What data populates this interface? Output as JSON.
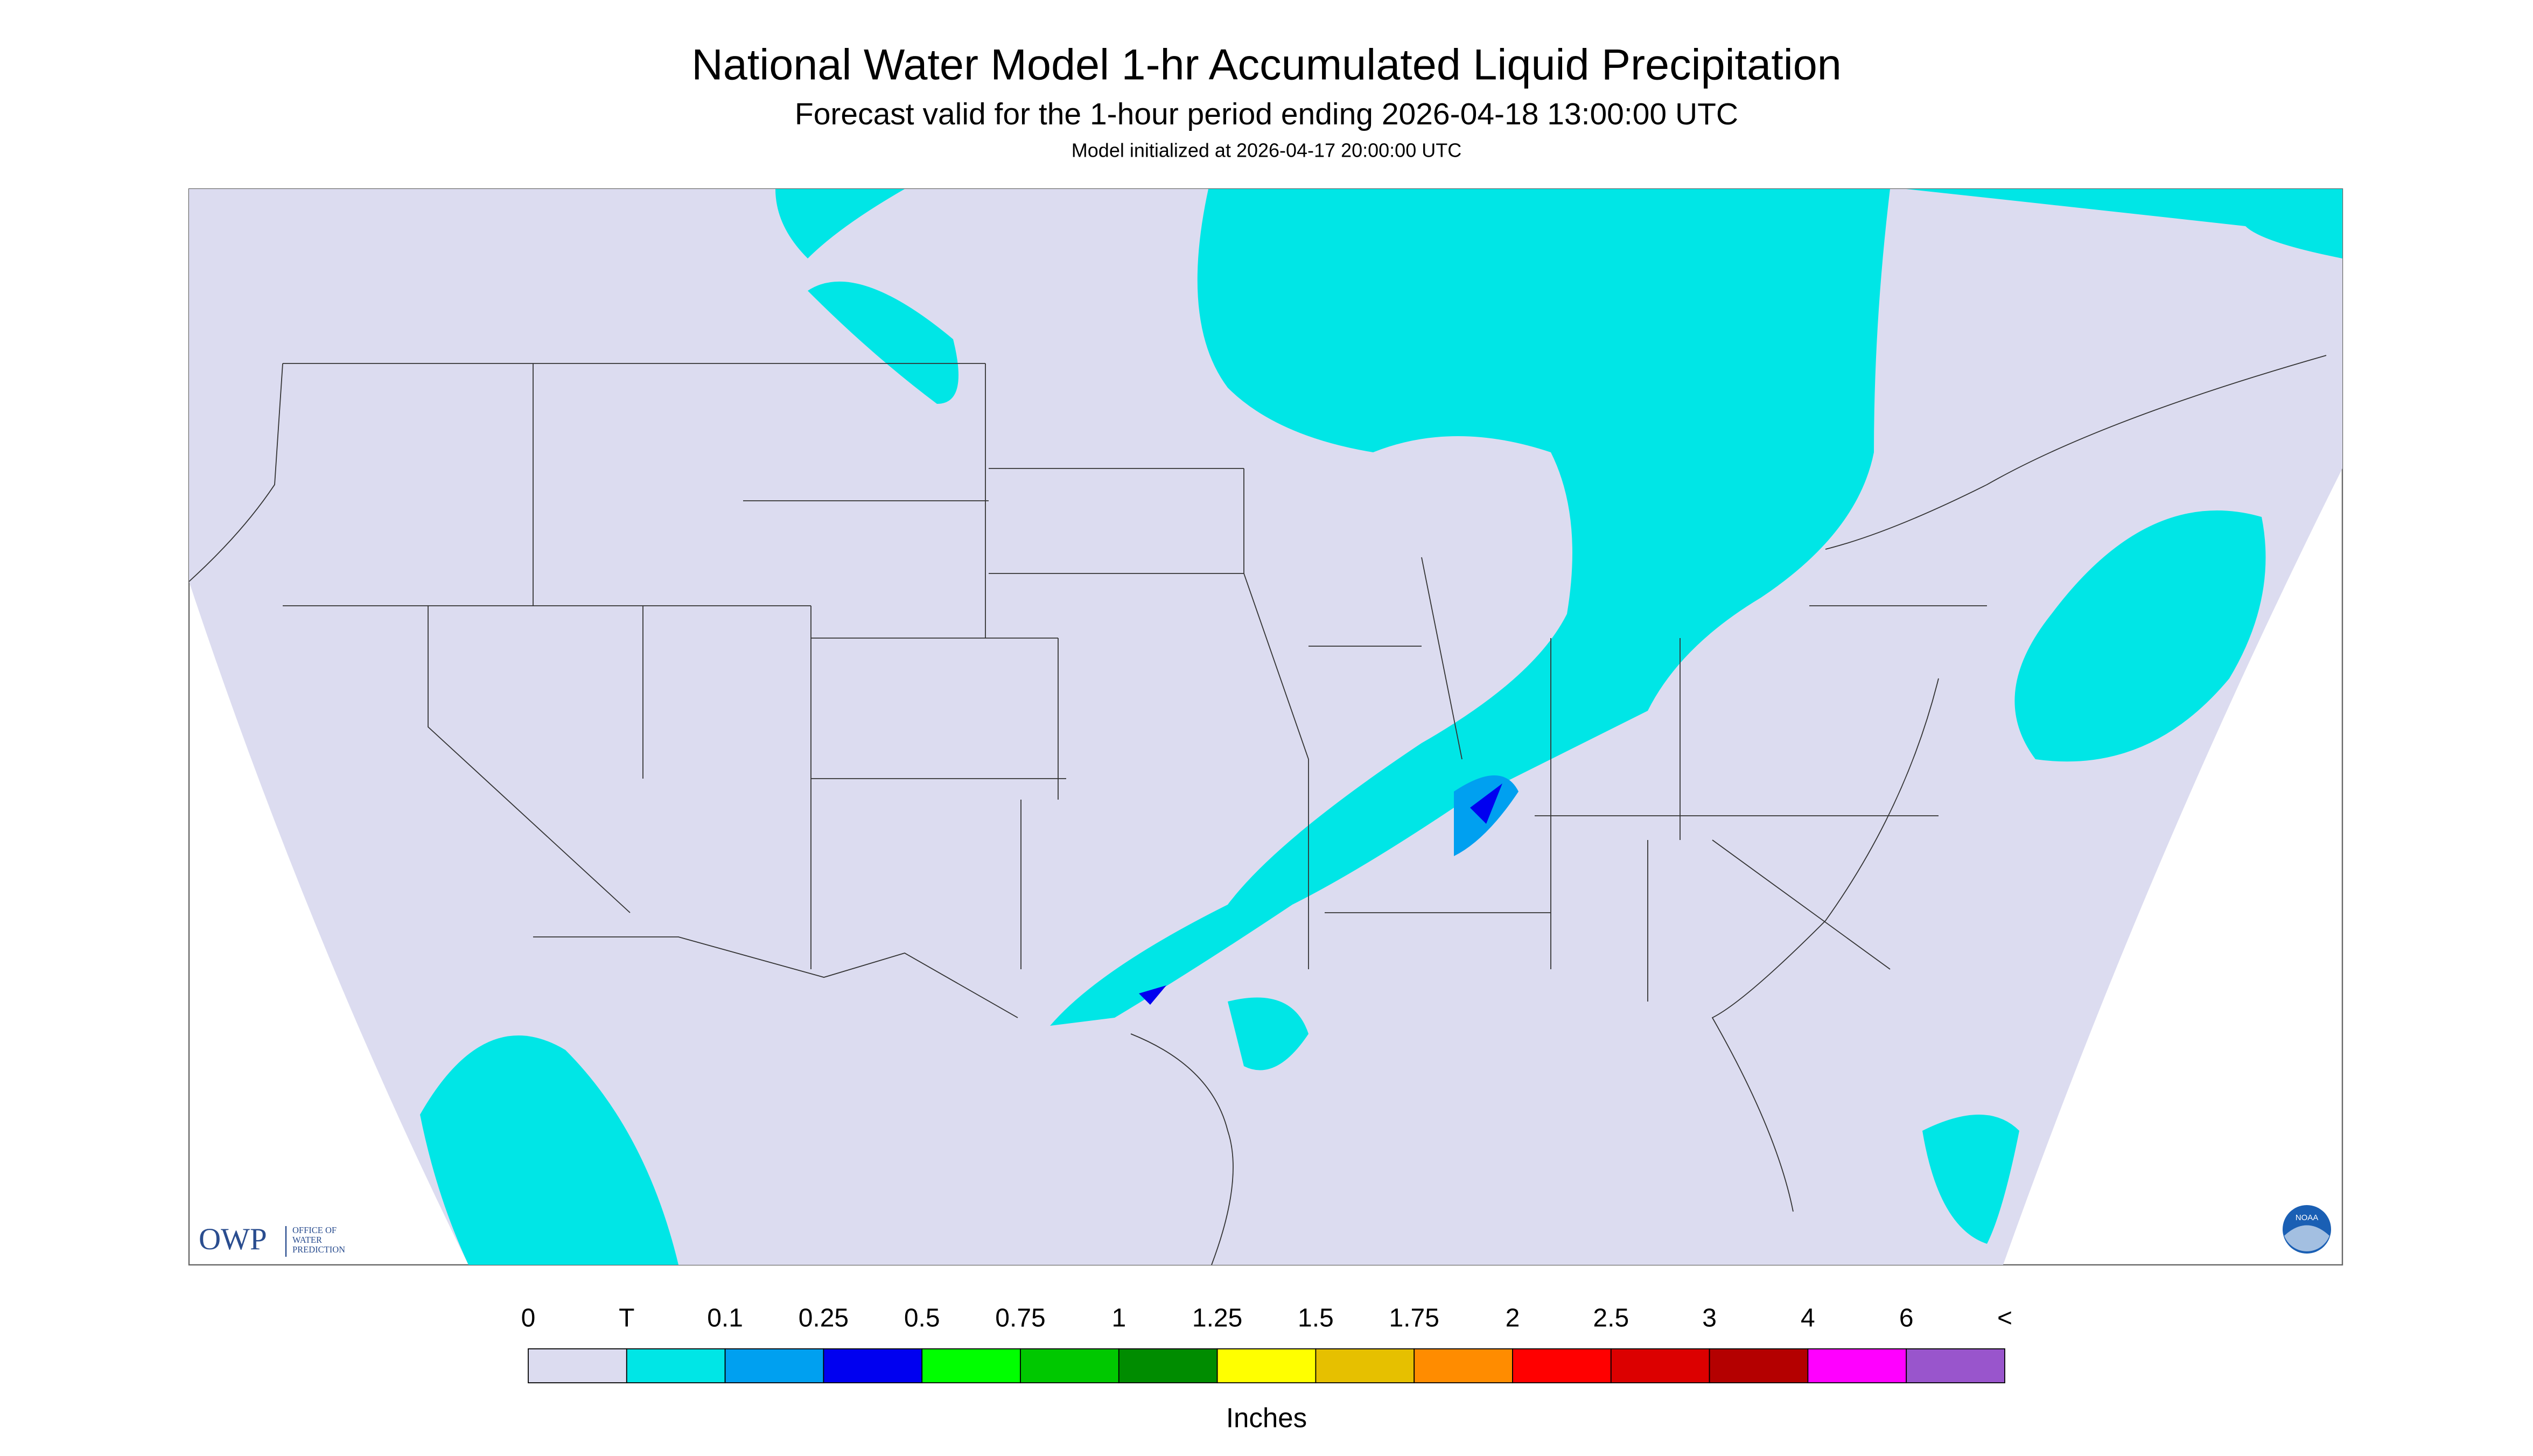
{
  "header": {
    "title": "National Water Model 1-hr Accumulated Liquid Precipitation",
    "subtitle": "Forecast valid for the 1-hour period ending 2026-04-18 13:00:00 UTC",
    "note": "Model initialized at 2026-04-17 20:00:00 UTC"
  },
  "logo": {
    "name": "OWP",
    "text": [
      "OFFICE OF",
      "WATER",
      "PREDICTION"
    ],
    "badge": "NOAA"
  },
  "legend": {
    "labels": [
      "0",
      "T",
      "0.1",
      "0.25",
      "0.5",
      "0.75",
      "1",
      "1.25",
      "1.5",
      "1.75",
      "2",
      "2.5",
      "3",
      "4",
      "6",
      "<"
    ],
    "colors": [
      "#dcdcf0",
      "#00e6e6",
      "#00a0f0",
      "#0000f0",
      "#00ff00",
      "#00c800",
      "#008c00",
      "#ffff00",
      "#e6c000",
      "#ff8c00",
      "#ff0000",
      "#dc0000",
      "#b40000",
      "#ff00ff",
      "#9955cc"
    ],
    "unit": "Inches"
  }
}
